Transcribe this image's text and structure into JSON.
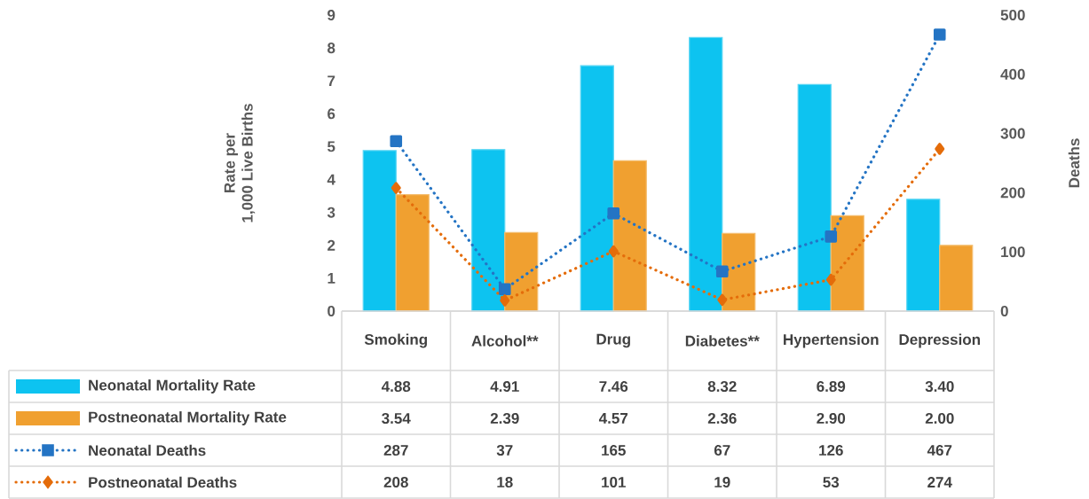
{
  "chart_data": {
    "type": "bar",
    "categories": [
      "Smoking",
      "Alcohol**",
      "Drug",
      "Diabetes**",
      "Hypertension",
      "Depression"
    ],
    "ylabel": "Rate per\n1,000 Live Births",
    "y2label": "Deaths",
    "ylim": [
      0,
      9
    ],
    "yticks": [
      0,
      1,
      2,
      3,
      4,
      5,
      6,
      7,
      8,
      9
    ],
    "y2lim": [
      0,
      500
    ],
    "y2ticks": [
      0,
      100,
      200,
      300,
      400,
      500
    ],
    "legend": "bottom",
    "series": [
      {
        "name": "Neonatal Mortality Rate",
        "color": "#0dc3f0",
        "values": [
          4.88,
          4.91,
          7.46,
          8.32,
          6.89,
          3.4
        ],
        "value_labels": [
          "4.88",
          "4.91",
          "7.46",
          "8.32",
          "6.89",
          "3.40"
        ]
      },
      {
        "name": "Postneonatal Mortality Rate",
        "color": "#f0a030",
        "values": [
          3.54,
          2.39,
          4.57,
          2.36,
          2.9,
          2.0
        ],
        "value_labels": [
          "3.54",
          "2.39",
          "4.57",
          "2.36",
          "2.90",
          "2.00"
        ]
      },
      {
        "name": "Neonatal Deaths",
        "type": "line",
        "axis": "y2",
        "marker": "square",
        "line_style": "dotted",
        "color": "#2474c4",
        "values": [
          287,
          37,
          165,
          67,
          126,
          467
        ],
        "value_labels": [
          "287",
          "37",
          "165",
          "67",
          "126",
          "467"
        ]
      },
      {
        "name": "Postneonatal Deaths",
        "type": "line",
        "axis": "y2",
        "marker": "diamond",
        "line_style": "dotted",
        "color": "#e46c0a",
        "values": [
          208,
          18,
          101,
          19,
          53,
          274
        ],
        "value_labels": [
          "208",
          "18",
          "101",
          "19",
          "53",
          "274"
        ]
      }
    ]
  }
}
